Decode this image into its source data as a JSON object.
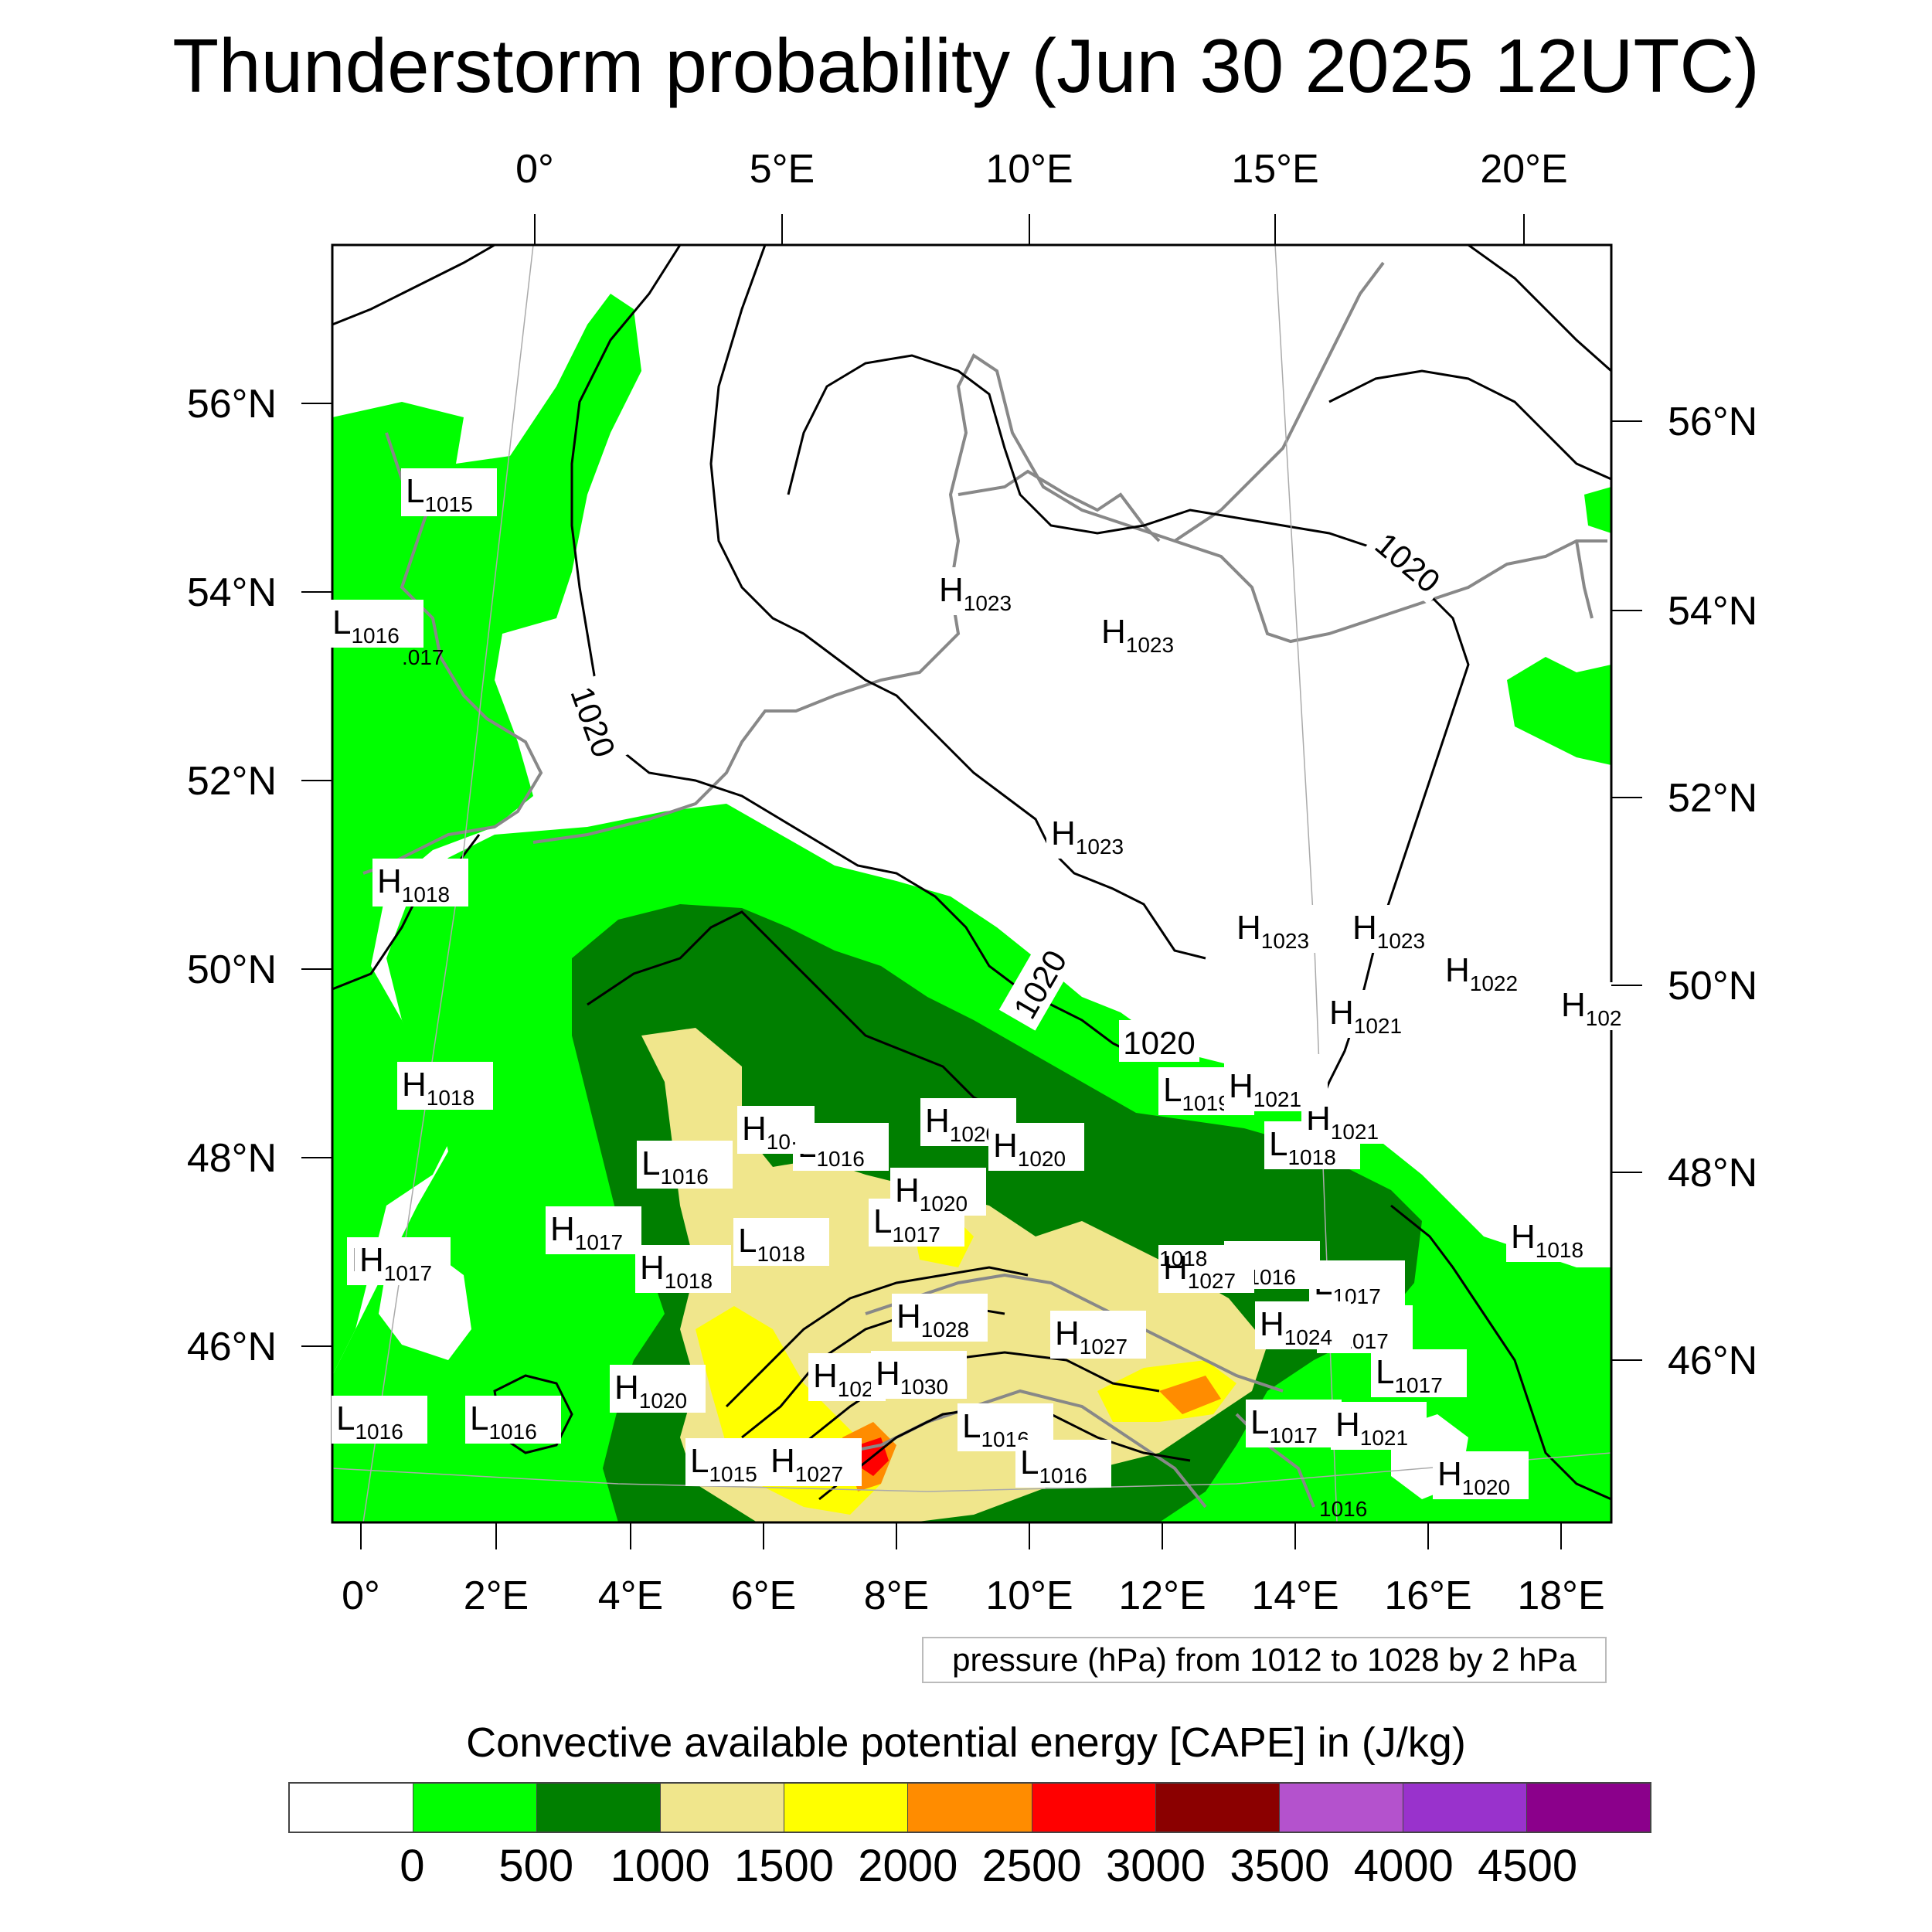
{
  "title": "Thunderstorm probability (Jun 30 2025 12UTC)",
  "map": {
    "top_lon_labels": [
      "0°",
      "5°E",
      "10°E",
      "15°E",
      "20°E"
    ],
    "bottom_lon_labels": [
      "0°",
      "2°E",
      "4°E",
      "6°E",
      "8°E",
      "10°E",
      "12°E",
      "14°E",
      "16°E",
      "18°E"
    ],
    "left_lat_labels": [
      "56°N",
      "54°N",
      "52°N",
      "50°N",
      "48°N",
      "46°N"
    ],
    "right_lat_labels": [
      "56°N",
      "54°N",
      "52°N",
      "50°N",
      "48°N",
      "46°N"
    ],
    "isobar_labels": [
      "1020",
      "1020",
      "1020",
      "1020",
      "1020"
    ],
    "pressure_centers": [
      {
        "type": "L",
        "value": "1015"
      },
      {
        "type": "L",
        "value": "1016"
      },
      {
        "type": "L",
        "value": "1016"
      },
      {
        "type": "L",
        "value": "1016"
      },
      {
        "type": "L",
        "value": "1017"
      },
      {
        "type": "L",
        "value": "1017"
      },
      {
        "type": "L",
        "value": "1017"
      },
      {
        "type": "L",
        "value": "1017"
      },
      {
        "type": "L",
        "value": "1017"
      },
      {
        "type": "L",
        "value": "1017"
      },
      {
        "type": "L",
        "value": "1018"
      },
      {
        "type": "L",
        "value": "1018"
      },
      {
        "type": "L",
        "value": "1019"
      },
      {
        "type": "L",
        "value": "1016"
      },
      {
        "type": "L",
        "value": "1016"
      },
      {
        "type": "L",
        "value": "1016"
      },
      {
        "type": "L",
        "value": "1015"
      },
      {
        "type": "L",
        "value": "1016"
      },
      {
        "type": "L",
        "value": "1016"
      },
      {
        "type": "H",
        "value": "1023"
      },
      {
        "type": "H",
        "value": "1023"
      },
      {
        "type": "H",
        "value": "1023"
      },
      {
        "type": "H",
        "value": "1023"
      },
      {
        "type": "H",
        "value": "1023"
      },
      {
        "type": "H",
        "value": "1022"
      },
      {
        "type": "H",
        "value": "1021"
      },
      {
        "type": "H",
        "value": "1021"
      },
      {
        "type": "H",
        "value": "1021"
      },
      {
        "type": "H",
        "value": "1018"
      },
      {
        "type": "H",
        "value": "1018"
      },
      {
        "type": "H",
        "value": "1018"
      },
      {
        "type": "H",
        "value": "1018"
      },
      {
        "type": "H",
        "value": "1017"
      },
      {
        "type": "H",
        "value": "1017"
      },
      {
        "type": "H",
        "value": "1020"
      },
      {
        "type": "H",
        "value": "1020"
      },
      {
        "type": "H",
        "value": "1020"
      },
      {
        "type": "H",
        "value": "1020"
      },
      {
        "type": "H",
        "value": "1027"
      },
      {
        "type": "H",
        "value": "1027"
      },
      {
        "type": "H",
        "value": "1027"
      },
      {
        "type": "H",
        "value": "1028"
      },
      {
        "type": "H",
        "value": "1024"
      },
      {
        "type": "H",
        "value": "1021"
      },
      {
        "type": "H",
        "value": "1021"
      },
      {
        "type": "H",
        "value": "1020"
      },
      {
        "type": "H",
        "value": "102"
      },
      {
        "type": "H",
        "value": "1030"
      },
      {
        "type": "H",
        "value": "10·"
      },
      {
        "type": "H",
        "value": "102"
      }
    ],
    "partial_labels": [
      ".017",
      "1016",
      "1018"
    ]
  },
  "pressure_note": "pressure (hPa) from 1012 to 1028 by 2 hPa",
  "colorbar": {
    "title": "Convective available potential energy [CAPE] in (J/kg)",
    "colors": [
      "#ffffff",
      "#00ff00",
      "#007f00",
      "#f0e68c",
      "#ffff00",
      "#ff8c00",
      "#ff0000",
      "#8b0000",
      "#b452cd",
      "#9932cc",
      "#8b008b"
    ],
    "labels": [
      "0",
      "500",
      "1000",
      "1500",
      "2000",
      "2500",
      "3000",
      "3500",
      "4000",
      "4500"
    ]
  }
}
